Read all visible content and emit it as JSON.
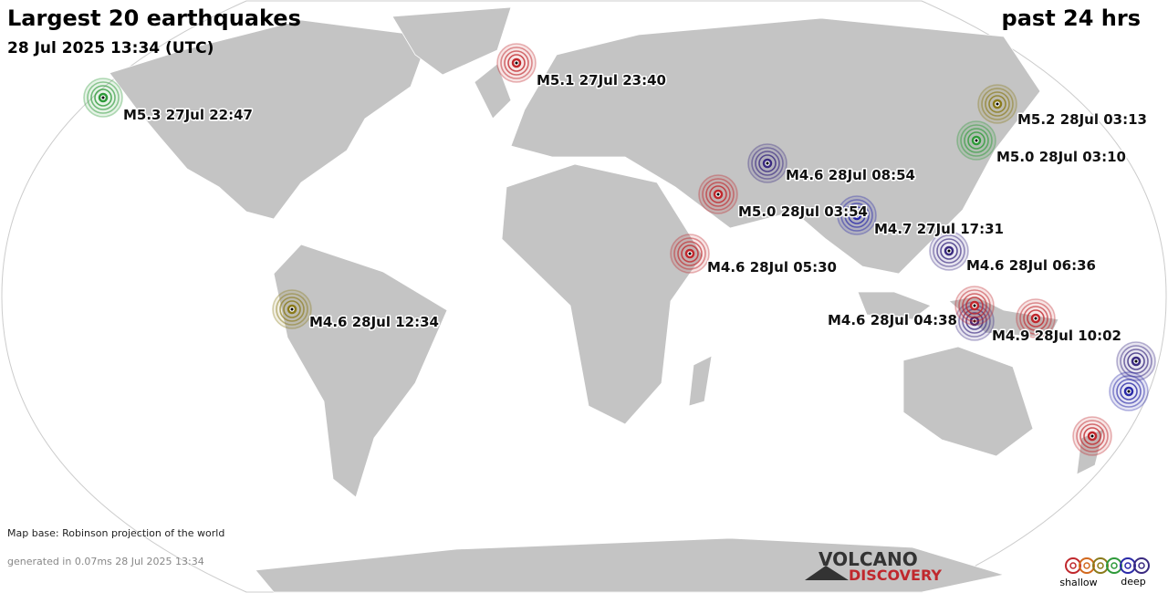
{
  "header": {
    "title": "Largest 20 earthquakes",
    "subtitle": "28 Jul 2025 13:34 (UTC)",
    "period": "past 24 hrs"
  },
  "quakes": [
    {
      "label": "M5.1 27Jul 23:40"
    },
    {
      "label": "M5.3 27Jul 22:47"
    },
    {
      "label": "M5.2 28Jul 03:13"
    },
    {
      "label": "M5.0 28Jul 03:10"
    },
    {
      "label": "M4.6 28Jul 08:54"
    },
    {
      "label": "M5.0 28Jul 03:54"
    },
    {
      "label": "M4.7 27Jul 17:31"
    },
    {
      "label": "M4.6 28Jul 06:36"
    },
    {
      "label": "M4.6 28Jul 05:30"
    },
    {
      "label": "M4.6 28Jul 12:34"
    },
    {
      "label": "M4.6 28Jul 04:38"
    },
    {
      "label": "M4.9 28Jul 10:02"
    }
  ],
  "footer": {
    "map_base": "Map base: Robinson projection of the world",
    "generated": "generated in 0.07ms 28 Jul 2025 13:34"
  },
  "logo": {
    "line1": "VOLCANO",
    "line2": "DISCOVERY"
  },
  "legend": {
    "shallow": "shallow",
    "deep": "deep"
  }
}
